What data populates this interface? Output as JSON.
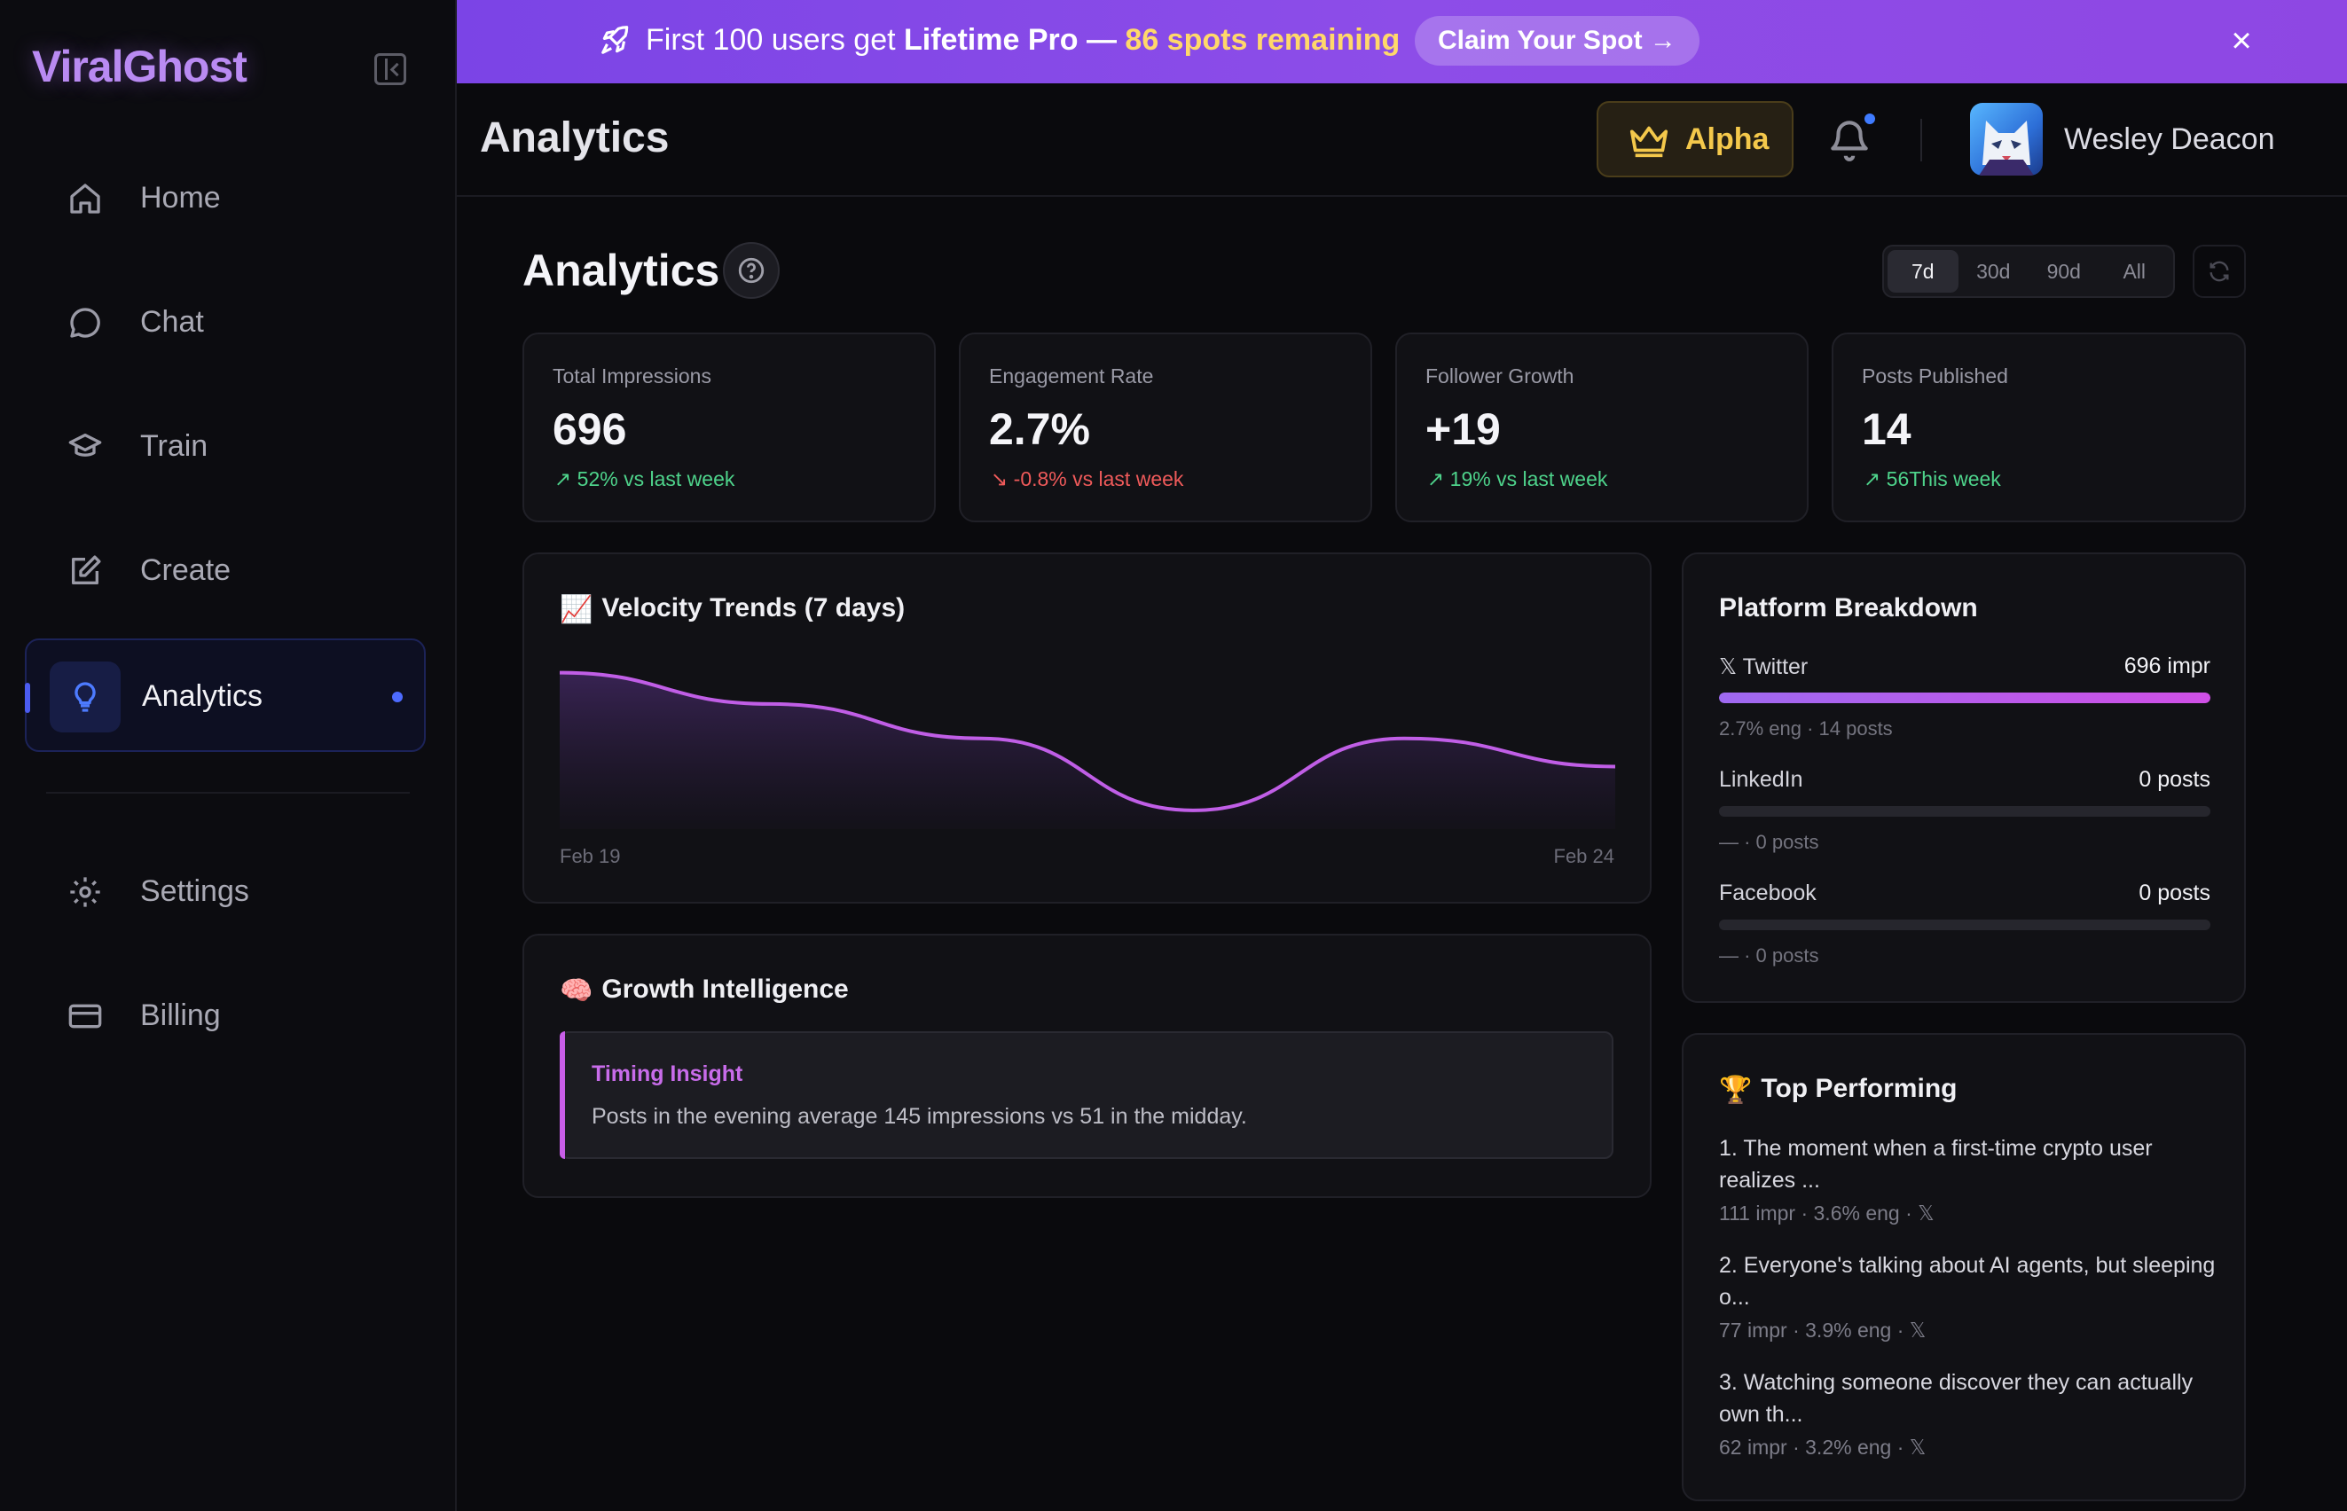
{
  "brand": {
    "name": "ViralGhost"
  },
  "sidebar": {
    "items": [
      {
        "label": "Home",
        "icon": "home-icon"
      },
      {
        "label": "Chat",
        "icon": "chat-icon"
      },
      {
        "label": "Train",
        "icon": "graduation-cap-icon"
      },
      {
        "label": "Create",
        "icon": "edit-icon"
      },
      {
        "label": "Analytics",
        "icon": "lightbulb-icon",
        "active": true
      },
      {
        "label": "Settings",
        "icon": "gear-icon"
      },
      {
        "label": "Billing",
        "icon": "credit-card-icon"
      }
    ]
  },
  "banner": {
    "text_prefix": "First 100 users get ",
    "text_bold": "Lifetime Pro",
    "text_sep": " — ",
    "text_highlight": "86 spots remaining",
    "cta": "Claim Your Spot →",
    "close": "×"
  },
  "header": {
    "title": "Analytics",
    "plan": "Alpha",
    "user_name": "Wesley Deacon"
  },
  "page": {
    "title": "Analytics",
    "ranges": [
      "7d",
      "30d",
      "90d",
      "All"
    ],
    "selected_range": "7d"
  },
  "stats": [
    {
      "label": "Total Impressions",
      "value": "696",
      "delta": "52% vs last week",
      "trend": "up",
      "arrow": "↗"
    },
    {
      "label": "Engagement Rate",
      "value": "2.7%",
      "delta": "-0.8% vs last week",
      "trend": "down",
      "arrow": "↘"
    },
    {
      "label": "Follower Growth",
      "value": "+19",
      "delta": "19% vs last week",
      "trend": "up",
      "arrow": "↗"
    },
    {
      "label": "Posts Published",
      "value": "14",
      "delta": "56This week",
      "trend": "up",
      "arrow": "↗"
    }
  ],
  "velocity": {
    "emoji": "📈",
    "title": "Velocity Trends (7 days)",
    "x_start": "Feb 19",
    "x_end": "Feb 24"
  },
  "chart_data": {
    "type": "area",
    "title": "Velocity Trends (7 days)",
    "x": [
      "Feb 19",
      "Feb 20",
      "Feb 21",
      "Feb 22",
      "Feb 23",
      "Feb 24"
    ],
    "values": [
      100,
      80,
      58,
      12,
      58,
      40
    ],
    "ylim": [
      0,
      110
    ],
    "grid": false,
    "colors": {
      "line": "#c05ee6",
      "fill": "#3a2456"
    }
  },
  "growth": {
    "emoji": "🧠",
    "title": "Growth Intelligence",
    "insight_title": "Timing Insight",
    "insight_text": "Posts in the evening average 145 impressions vs 51 in the midday."
  },
  "platforms": {
    "title": "Platform Breakdown",
    "items": [
      {
        "name": "𝕏 Twitter",
        "value": "696 impr",
        "meta": "2.7% eng · 14 posts",
        "share": 1.0
      },
      {
        "name": "LinkedIn",
        "value": "0 posts",
        "meta": "— · 0 posts",
        "share": 0
      },
      {
        "name": "Facebook",
        "value": "0 posts",
        "meta": "— · 0 posts",
        "share": 0
      }
    ]
  },
  "top": {
    "emoji": "🏆",
    "title": "Top Performing",
    "items": [
      {
        "text": "1. The moment when a first-time crypto user realizes ...",
        "meta": "111 impr · 3.6% eng · 𝕏"
      },
      {
        "text": "2. Everyone's talking about AI agents, but sleeping o...",
        "meta": "77 impr · 3.9% eng · 𝕏"
      },
      {
        "text": "3. Watching someone discover they can actually own th...",
        "meta": "62 impr · 3.2% eng · 𝕏"
      }
    ]
  }
}
